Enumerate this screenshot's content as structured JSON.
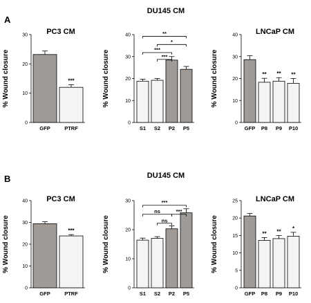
{
  "panel_labels": [
    "A",
    "B"
  ],
  "colors": {
    "dark_bar": "#a09b97",
    "light_bar": "#f4f4f4"
  },
  "chart_data": [
    {
      "type": "bar",
      "panel": "A",
      "title": "PC3 CM",
      "ylabel": "% Wound closure",
      "ylim": [
        0,
        30
      ],
      "yticks": [
        0,
        10,
        20,
        30
      ],
      "categories": [
        "GFP",
        "PTRF"
      ],
      "values": [
        23.2,
        12.0
      ],
      "errors": [
        1.2,
        0.9
      ],
      "fills": [
        "dark",
        "light"
      ],
      "sig": [
        "",
        "***"
      ],
      "brackets": []
    },
    {
      "type": "bar",
      "panel": "A",
      "title": "DU145 CM",
      "ylabel": "% Wound closure",
      "ylim": [
        0,
        40
      ],
      "yticks": [
        0,
        10,
        20,
        30,
        40
      ],
      "categories": [
        "S1",
        "S2",
        "P2",
        "P5"
      ],
      "values": [
        18.8,
        19.2,
        28.4,
        24.2
      ],
      "errors": [
        0.9,
        0.8,
        1.6,
        1.3
      ],
      "fills": [
        "light",
        "light",
        "dark",
        "dark"
      ],
      "sig": [
        "",
        "",
        "",
        ""
      ],
      "brackets": [
        {
          "from": 0,
          "to": 3,
          "label": "**",
          "y": 39.2
        },
        {
          "from": 1,
          "to": 3,
          "label": "*",
          "y": 35.5
        },
        {
          "from": 0,
          "to": 2,
          "label": "***",
          "y": 31.8
        },
        {
          "from": 1,
          "to": 2,
          "label": "***",
          "y": 28.7
        }
      ]
    },
    {
      "type": "bar",
      "panel": "A",
      "title": "LNCaP CM",
      "ylabel": "% Wound closure",
      "ylim": [
        0,
        40
      ],
      "yticks": [
        0,
        10,
        20,
        30,
        40
      ],
      "categories": [
        "GFP",
        "P8",
        "P9",
        "P10"
      ],
      "values": [
        28.6,
        18.3,
        18.8,
        17.8
      ],
      "errors": [
        1.8,
        1.8,
        1.6,
        2.2
      ],
      "fills": [
        "dark",
        "light",
        "light",
        "light"
      ],
      "sig": [
        "",
        "**",
        "**",
        "**"
      ],
      "brackets": []
    },
    {
      "type": "bar",
      "panel": "B",
      "title": "PC3 CM",
      "ylabel": "% Wound closure",
      "ylim": [
        0,
        40
      ],
      "yticks": [
        0,
        10,
        20,
        30,
        40
      ],
      "categories": [
        "GFP",
        "PTRF"
      ],
      "values": [
        29.4,
        23.8
      ],
      "errors": [
        0.9,
        0.6
      ],
      "fills": [
        "dark",
        "light"
      ],
      "sig": [
        "",
        "***"
      ],
      "brackets": []
    },
    {
      "type": "bar",
      "panel": "B",
      "title": "DU145 CM",
      "ylabel": "% Wound closure",
      "ylim": [
        0,
        30
      ],
      "yticks": [
        0,
        10,
        20,
        30
      ],
      "categories": [
        "S1",
        "S2",
        "P2",
        "P5"
      ],
      "values": [
        16.4,
        17.0,
        20.3,
        25.8
      ],
      "errors": [
        0.7,
        0.6,
        1.0,
        1.4
      ],
      "fills": [
        "light",
        "light",
        "dark",
        "dark"
      ],
      "sig": [
        "",
        "",
        "",
        ""
      ],
      "brackets": [
        {
          "from": 0,
          "to": 3,
          "label": "***",
          "y": 28.4
        },
        {
          "from": 0,
          "to": 2,
          "label": "ns",
          "y": 25.3
        },
        {
          "from": 2,
          "to": 3,
          "label": "***",
          "y": 25.3
        },
        {
          "from": 1,
          "to": 2,
          "label": "ns",
          "y": 22.2
        }
      ]
    },
    {
      "type": "bar",
      "panel": "B",
      "title": "LNCaP CM",
      "ylabel": "% Wound closure",
      "ylim": [
        0,
        25
      ],
      "yticks": [
        0,
        5,
        10,
        15,
        20,
        25
      ],
      "categories": [
        "GFP",
        "P8",
        "P9",
        "P10"
      ],
      "values": [
        20.6,
        13.6,
        14.1,
        14.8
      ],
      "errors": [
        0.7,
        0.8,
        0.9,
        1.1
      ],
      "fills": [
        "dark",
        "light",
        "light",
        "light"
      ],
      "sig": [
        "",
        "**",
        "**",
        "*"
      ],
      "brackets": []
    }
  ]
}
